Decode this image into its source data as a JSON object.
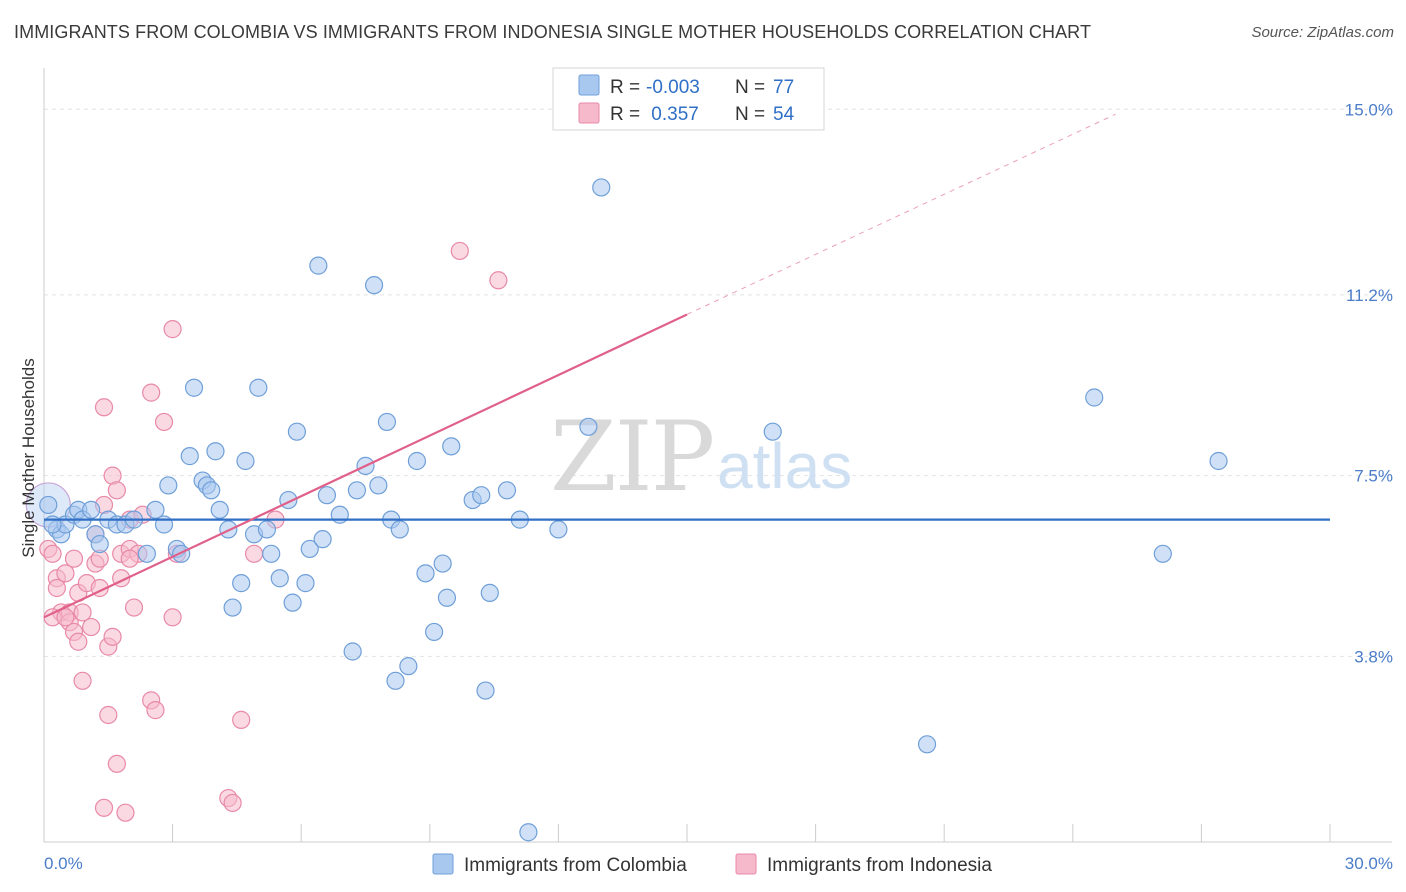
{
  "title": "IMMIGRANTS FROM COLOMBIA VS IMMIGRANTS FROM INDONESIA SINGLE MOTHER HOUSEHOLDS CORRELATION CHART",
  "source": "Source: ZipAtlas.com",
  "watermark": {
    "zip": "ZIP",
    "atlas": "atlas"
  },
  "legend": {
    "rows": [
      {
        "r_label": "R =",
        "r_value": "-0.003",
        "n_label": "N =",
        "n_value": "77",
        "color": "#a9c8f0"
      },
      {
        "r_label": "R =",
        "r_value": " 0.357",
        "n_label": "N =",
        "n_value": "54",
        "color": "#f6b9cc"
      }
    ]
  },
  "colors": {
    "blue_fill": "#a9c8f0",
    "blue_stroke": "#6f9fd8",
    "blue_line": "#2f6fc6",
    "pink_fill": "#f6b9cc",
    "pink_stroke": "#e889a8",
    "pink_line": "#e0608a",
    "tick": "#4a7cc8"
  },
  "chart_data": {
    "type": "scatter",
    "title": "IMMIGRANTS FROM COLOMBIA VS IMMIGRANTS FROM INDONESIA SINGLE MOTHER HOUSEHOLDS CORRELATION CHART",
    "xlabel": "",
    "ylabel": "Single Mother Households",
    "xlim": [
      0,
      30
    ],
    "ylim": [
      0,
      15.6
    ],
    "x_tick_labels": [
      "0.0%",
      "30.0%"
    ],
    "y_ticks": [
      3.8,
      7.5,
      11.2,
      15.0
    ],
    "y_tick_labels": [
      "3.8%",
      "7.5%",
      "11.2%",
      "15.0%"
    ],
    "grid": true,
    "series": [
      {
        "name": "Immigrants from Colombia",
        "color": "#a9c8f0",
        "trend": {
          "x": [
            0,
            30
          ],
          "y": [
            6.6,
            6.6
          ]
        },
        "points": [
          [
            0.1,
            6.9
          ],
          [
            0.3,
            6.4
          ],
          [
            0.4,
            6.3
          ],
          [
            0.5,
            6.5
          ],
          [
            0.7,
            6.7
          ],
          [
            0.8,
            6.8
          ],
          [
            0.9,
            6.6
          ],
          [
            1.1,
            6.8
          ],
          [
            1.2,
            6.3
          ],
          [
            1.3,
            6.1
          ],
          [
            1.5,
            6.6
          ],
          [
            1.7,
            6.5
          ],
          [
            1.9,
            6.5
          ],
          [
            2.1,
            6.6
          ],
          [
            2.4,
            5.9
          ],
          [
            2.6,
            6.8
          ],
          [
            2.8,
            6.5
          ],
          [
            2.9,
            7.3
          ],
          [
            3.1,
            6.0
          ],
          [
            3.2,
            5.9
          ],
          [
            3.4,
            7.9
          ],
          [
            3.5,
            9.3
          ],
          [
            3.7,
            7.4
          ],
          [
            3.8,
            7.3
          ],
          [
            3.9,
            7.2
          ],
          [
            4.0,
            8.0
          ],
          [
            4.1,
            6.8
          ],
          [
            4.3,
            6.4
          ],
          [
            4.4,
            4.8
          ],
          [
            4.6,
            5.3
          ],
          [
            4.7,
            7.8
          ],
          [
            4.9,
            6.3
          ],
          [
            5.0,
            9.3
          ],
          [
            5.2,
            6.4
          ],
          [
            5.3,
            5.9
          ],
          [
            5.5,
            5.4
          ],
          [
            5.7,
            7.0
          ],
          [
            5.8,
            4.9
          ],
          [
            5.9,
            8.4
          ],
          [
            6.1,
            5.3
          ],
          [
            6.2,
            6.0
          ],
          [
            6.5,
            6.2
          ],
          [
            6.4,
            11.8
          ],
          [
            6.6,
            7.1
          ],
          [
            6.9,
            6.7
          ],
          [
            7.2,
            3.9
          ],
          [
            7.3,
            7.2
          ],
          [
            7.5,
            7.7
          ],
          [
            7.7,
            11.4
          ],
          [
            7.8,
            7.3
          ],
          [
            8.0,
            8.6
          ],
          [
            8.1,
            6.6
          ],
          [
            8.2,
            3.3
          ],
          [
            8.3,
            6.4
          ],
          [
            8.5,
            3.6
          ],
          [
            8.7,
            7.8
          ],
          [
            8.9,
            5.5
          ],
          [
            9.1,
            4.3
          ],
          [
            9.3,
            5.7
          ],
          [
            9.4,
            5.0
          ],
          [
            9.5,
            8.1
          ],
          [
            10.0,
            7.0
          ],
          [
            10.2,
            7.1
          ],
          [
            10.3,
            3.1
          ],
          [
            10.4,
            5.1
          ],
          [
            10.8,
            7.2
          ],
          [
            11.1,
            6.6
          ],
          [
            11.3,
            0.2
          ],
          [
            12.0,
            6.4
          ],
          [
            12.7,
            8.5
          ],
          [
            13.0,
            13.4
          ],
          [
            17.0,
            8.4
          ],
          [
            20.6,
            2.0
          ],
          [
            24.5,
            9.1
          ],
          [
            26.1,
            5.9
          ],
          [
            27.4,
            7.8
          ],
          [
            0.2,
            6.5
          ]
        ],
        "big_point": [
          0.1,
          6.9
        ]
      },
      {
        "name": "Immigrants from Indonesia",
        "color": "#f6b9cc",
        "trend": {
          "x": [
            0,
            15
          ],
          "y": [
            4.6,
            10.8
          ],
          "dashed_to": [
            25,
            14.9
          ]
        },
        "points": [
          [
            0.1,
            6.0
          ],
          [
            0.2,
            5.9
          ],
          [
            0.3,
            5.4
          ],
          [
            0.3,
            5.2
          ],
          [
            0.4,
            4.7
          ],
          [
            0.5,
            5.5
          ],
          [
            0.6,
            4.7
          ],
          [
            0.6,
            4.5
          ],
          [
            0.7,
            5.8
          ],
          [
            0.7,
            4.3
          ],
          [
            0.8,
            5.1
          ],
          [
            0.8,
            4.1
          ],
          [
            0.9,
            4.7
          ],
          [
            0.9,
            3.3
          ],
          [
            1.0,
            5.3
          ],
          [
            1.1,
            4.4
          ],
          [
            1.2,
            5.7
          ],
          [
            1.2,
            6.3
          ],
          [
            1.3,
            5.8
          ],
          [
            1.3,
            5.2
          ],
          [
            1.4,
            8.9
          ],
          [
            1.4,
            6.9
          ],
          [
            1.5,
            2.6
          ],
          [
            1.5,
            4.0
          ],
          [
            1.6,
            7.5
          ],
          [
            1.6,
            4.2
          ],
          [
            1.7,
            7.2
          ],
          [
            1.7,
            1.6
          ],
          [
            1.8,
            5.9
          ],
          [
            1.8,
            5.4
          ],
          [
            1.9,
            0.6
          ],
          [
            2.0,
            6.6
          ],
          [
            2.0,
            6.0
          ],
          [
            2.1,
            4.8
          ],
          [
            2.2,
            5.9
          ],
          [
            2.3,
            6.7
          ],
          [
            2.5,
            9.2
          ],
          [
            2.5,
            2.9
          ],
          [
            2.6,
            2.7
          ],
          [
            2.8,
            8.6
          ],
          [
            3.0,
            10.5
          ],
          [
            3.0,
            4.6
          ],
          [
            3.1,
            5.9
          ],
          [
            4.3,
            0.9
          ],
          [
            4.4,
            0.8
          ],
          [
            4.6,
            2.5
          ],
          [
            4.9,
            5.9
          ],
          [
            5.4,
            6.6
          ],
          [
            9.7,
            12.1
          ],
          [
            10.6,
            11.5
          ],
          [
            1.4,
            0.7
          ],
          [
            0.2,
            4.6
          ],
          [
            0.5,
            4.6
          ],
          [
            2.0,
            5.8
          ]
        ]
      }
    ]
  }
}
